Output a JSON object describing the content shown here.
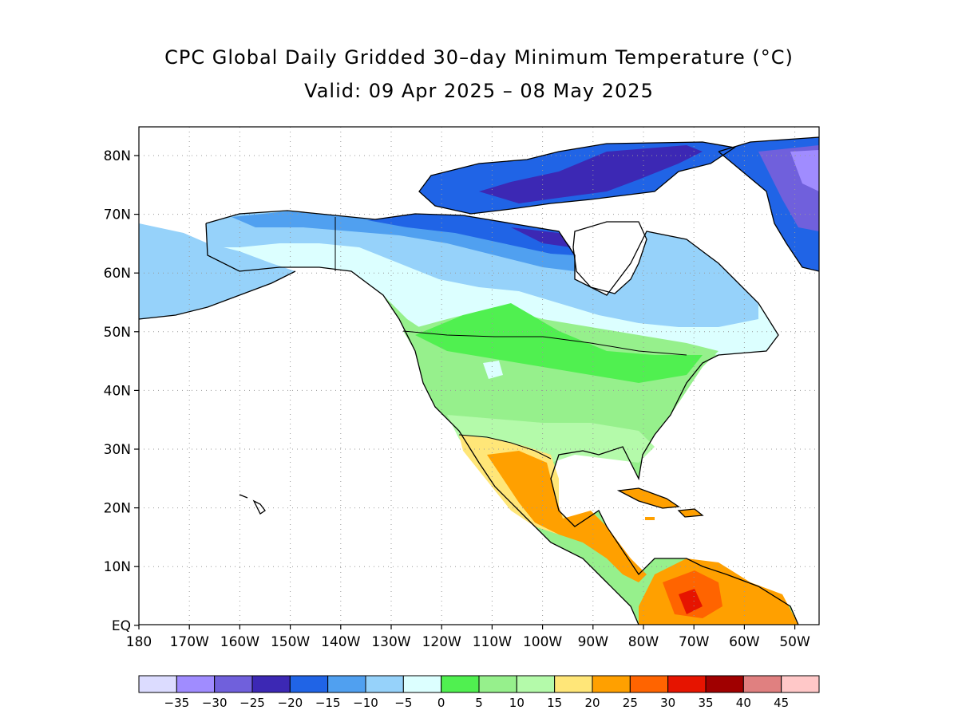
{
  "title": "CPC Global Daily Gridded 30–day Minimum Temperature (°C)",
  "subtitle": "Valid: 09 Apr 2025 – 08 May 2025",
  "map": {
    "lat_labels": [
      "80N",
      "70N",
      "60N",
      "50N",
      "40N",
      "30N",
      "20N",
      "10N",
      "EQ"
    ],
    "lon_labels": [
      "180",
      "170W",
      "160W",
      "150W",
      "140W",
      "130W",
      "120W",
      "110W",
      "100W",
      "90W",
      "80W",
      "70W",
      "60W",
      "50W"
    ]
  },
  "colorbar": {
    "colors": [
      "#dcdcff",
      "#a08cff",
      "#7060dc",
      "#3c28b4",
      "#2064e6",
      "#50a0f0",
      "#96d2fa",
      "#dcffff",
      "#50f050",
      "#96f08c",
      "#b4faaa",
      "#ffe678",
      "#ffa000",
      "#ff6400",
      "#e61400",
      "#a00000",
      "#e08080",
      "#ffc8c8"
    ],
    "labels": [
      "−35",
      "−30",
      "−25",
      "−20",
      "−15",
      "−10",
      "−5",
      "0",
      "5",
      "10",
      "15",
      "20",
      "25",
      "30",
      "35",
      "40",
      "45"
    ]
  }
}
